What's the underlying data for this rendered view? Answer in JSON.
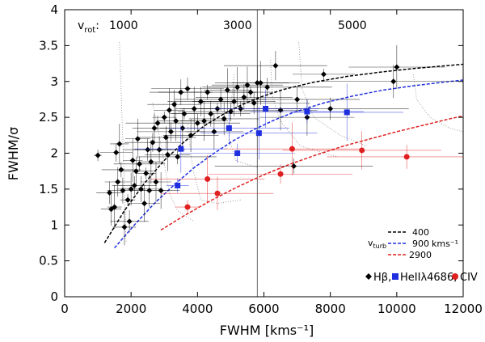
{
  "chart_data": {
    "type": "scatter",
    "xlabel": "FWHM [kms⁻¹]",
    "ylabel": "FWHM/σ",
    "xlim": [
      0,
      12000
    ],
    "ylim": [
      0,
      4
    ],
    "xticks": [
      "0",
      "2000",
      "4000",
      "6000",
      "8000",
      "10000",
      "12000"
    ],
    "yticks": [
      "0",
      "0.5",
      "1",
      "1.5",
      "2",
      "2.5",
      "3",
      "3.5",
      "4"
    ],
    "vrot_label": "v",
    "vrot_sub": "rot",
    "vrot_colon": ":",
    "vrot_values": [
      "1000",
      "3000",
      "5000"
    ],
    "turb_label": "v",
    "turb_sub": "turb",
    "turb_unit": "kms⁻¹",
    "turb_entries": [
      {
        "name": "400",
        "color": "#000000"
      },
      {
        "name": "900",
        "color": "#1f2fe0"
      },
      {
        "name": "2900",
        "color": "#e02020"
      }
    ],
    "legend": [
      {
        "name": "Hβ,",
        "color": "#000000",
        "marker": "diamond"
      },
      {
        "name": "HeIIλ4686,",
        "color": "#1f2fe0",
        "marker": "square"
      },
      {
        "name": "CIV",
        "color": "#e02020",
        "marker": "circle"
      }
    ],
    "series": [
      {
        "name": "Hβ",
        "color": "#000000",
        "points": [
          [
            1000,
            1.97
          ],
          [
            1350,
            1.45
          ],
          [
            1400,
            1.22
          ],
          [
            1500,
            1.25
          ],
          [
            1550,
            2.01
          ],
          [
            1600,
            1.6
          ],
          [
            1650,
            2.13
          ],
          [
            1700,
            1.77
          ],
          [
            1750,
            1.48
          ],
          [
            1800,
            0.97
          ],
          [
            1900,
            1.35
          ],
          [
            1950,
            1.05
          ],
          [
            2000,
            1.5
          ],
          [
            2050,
            1.9
          ],
          [
            2100,
            1.55
          ],
          [
            2150,
            1.75
          ],
          [
            2200,
            2.2
          ],
          [
            2250,
            1.85
          ],
          [
            2300,
            1.5
          ],
          [
            2400,
            1.3
          ],
          [
            2450,
            1.72
          ],
          [
            2500,
            2.05
          ],
          [
            2550,
            1.48
          ],
          [
            2600,
            1.88
          ],
          [
            2650,
            2.15
          ],
          [
            2700,
            2.35
          ],
          [
            2750,
            1.6
          ],
          [
            2800,
            2.42
          ],
          [
            2850,
            2.05
          ],
          [
            2900,
            1.48
          ],
          [
            3000,
            2.5
          ],
          [
            3050,
            2.22
          ],
          [
            3100,
            1.98
          ],
          [
            3150,
            2.6
          ],
          [
            3200,
            2.3
          ],
          [
            3300,
            2.68
          ],
          [
            3350,
            2.45
          ],
          [
            3400,
            1.95
          ],
          [
            3500,
            2.85
          ],
          [
            3550,
            2.35
          ],
          [
            3600,
            2.55
          ],
          [
            3700,
            2.9
          ],
          [
            3800,
            2.25
          ],
          [
            3900,
            2.62
          ],
          [
            4000,
            2.42
          ],
          [
            4100,
            2.72
          ],
          [
            4200,
            2.45
          ],
          [
            4300,
            2.85
          ],
          [
            4400,
            2.55
          ],
          [
            4500,
            2.3
          ],
          [
            4600,
            2.62
          ],
          [
            4700,
            2.75
          ],
          [
            4800,
            2.48
          ],
          [
            4900,
            2.88
          ],
          [
            5000,
            2.58
          ],
          [
            5100,
            2.72
          ],
          [
            5200,
            2.92
          ],
          [
            5300,
            2.62
          ],
          [
            5400,
            2.78
          ],
          [
            5500,
            2.95
          ],
          [
            5600,
            2.85
          ],
          [
            5700,
            2.7
          ],
          [
            5800,
            2.98
          ],
          [
            5900,
            2.98
          ],
          [
            6100,
            2.92
          ],
          [
            6350,
            3.22
          ],
          [
            6500,
            2.6
          ],
          [
            6900,
            1.82
          ],
          [
            7000,
            2.75
          ],
          [
            7300,
            2.5
          ],
          [
            7800,
            3.1
          ],
          [
            8000,
            2.62
          ],
          [
            9900,
            3.0
          ],
          [
            10000,
            3.2
          ]
        ]
      },
      {
        "name": "HeIIλ4686",
        "color": "#1f2fe0",
        "points": [
          [
            3400,
            1.55
          ],
          [
            3500,
            2.06
          ],
          [
            4950,
            2.35
          ],
          [
            5200,
            2.0
          ],
          [
            5850,
            2.28
          ],
          [
            6050,
            2.62
          ],
          [
            7300,
            2.58
          ],
          [
            8500,
            2.57
          ]
        ]
      },
      {
        "name": "CIV",
        "color": "#e02020",
        "points": [
          [
            3700,
            1.25
          ],
          [
            4300,
            1.64
          ],
          [
            4600,
            1.44
          ],
          [
            6500,
            1.71
          ],
          [
            6850,
            2.06
          ],
          [
            8950,
            2.04
          ],
          [
            10300,
            1.95
          ]
        ]
      }
    ],
    "model_curves": [
      {
        "name": "400",
        "color": "#000000",
        "x": [
          1200,
          1800,
          2400,
          3000,
          3600,
          4200,
          4800,
          5400,
          6000,
          6600,
          7500,
          8500,
          9500,
          10500,
          11500,
          12000
        ],
        "y": [
          0.75,
          1.2,
          1.58,
          1.9,
          2.16,
          2.38,
          2.55,
          2.69,
          2.8,
          2.89,
          2.99,
          3.07,
          3.13,
          3.18,
          3.22,
          3.24
        ]
      },
      {
        "name": "900",
        "color": "#1f2fe0",
        "x": [
          1500,
          2100,
          2700,
          3300,
          3900,
          4500,
          5100,
          5700,
          6300,
          6900,
          7800,
          8700,
          9600,
          10500,
          11400,
          12000
        ],
        "y": [
          0.68,
          1.0,
          1.3,
          1.56,
          1.8,
          2.0,
          2.18,
          2.33,
          2.46,
          2.57,
          2.7,
          2.8,
          2.88,
          2.94,
          2.99,
          3.02
        ]
      },
      {
        "name": "2900",
        "color": "#e02020",
        "x": [
          2900,
          3600,
          4400,
          5200,
          6000,
          6800,
          7600,
          8400,
          9200,
          10000,
          10800,
          11600,
          12000
        ],
        "y": [
          0.93,
          1.13,
          1.34,
          1.53,
          1.7,
          1.85,
          1.98,
          2.1,
          2.2,
          2.3,
          2.39,
          2.48,
          2.52
        ]
      }
    ]
  }
}
